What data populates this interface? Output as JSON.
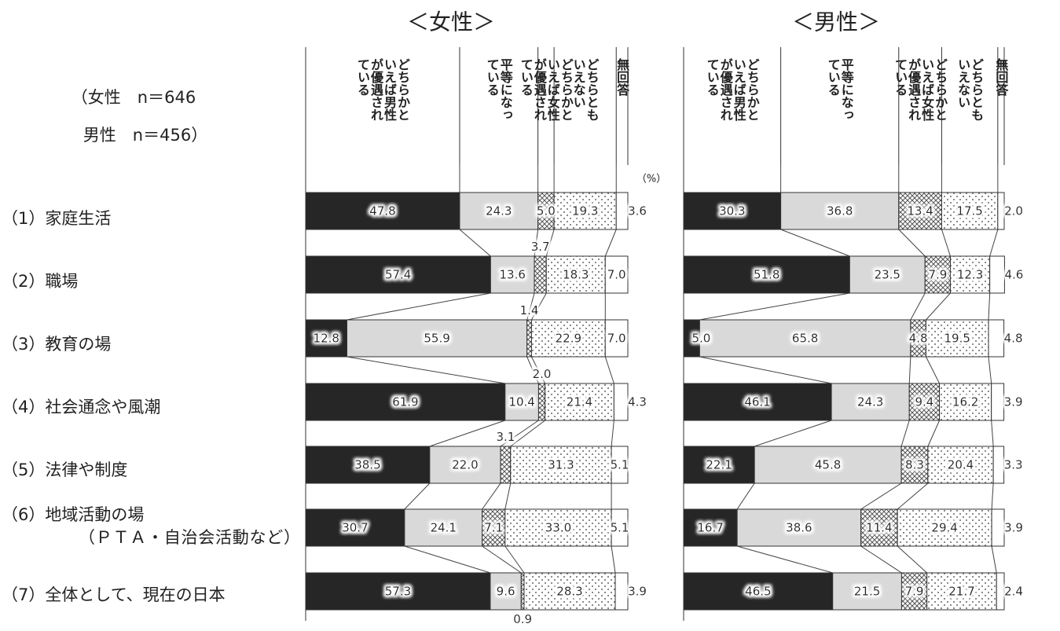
{
  "sample_note": [
    "（女性　n＝646",
    "男性　n＝456）"
  ],
  "chart_data": [
    {
      "type": "bar",
      "orientation": "horizontal",
      "stacked": true,
      "title": "＜女性＞",
      "unit": "（%）",
      "xlim": [
        0,
        100
      ],
      "categories": [
        "（1）家庭生活",
        "（2）職場",
        "（3）教育の場",
        "（4）社会通念や風潮",
        "（5）法律や制度",
        "（6）地域活動の場\n　（ＰＴＡ・自治会活動など）",
        "（7）全体として、現在の日本"
      ],
      "series": [
        {
          "name": "どちらかといえば男性が優遇されている",
          "color": "#262626",
          "pattern": "solid",
          "values": [
            47.8,
            57.4,
            12.8,
            61.9,
            38.5,
            30.7,
            57.3
          ]
        },
        {
          "name": "平等になっている",
          "color": "#d9d9d9",
          "pattern": "solid",
          "values": [
            24.3,
            13.6,
            55.9,
            10.4,
            22.0,
            24.1,
            9.6
          ]
        },
        {
          "name": "どちらかといえば女性が優遇されている",
          "color": "#ffffff",
          "pattern": "crosshatch",
          "values": [
            5.0,
            3.7,
            1.4,
            2.0,
            3.1,
            7.1,
            0.9
          ]
        },
        {
          "name": "どちらともいえない",
          "color": "#ffffff",
          "pattern": "dots",
          "values": [
            19.3,
            18.3,
            22.9,
            21.4,
            31.3,
            33.0,
            28.3
          ]
        },
        {
          "name": "無回答",
          "color": "#ffffff",
          "pattern": "blank",
          "values": [
            3.6,
            7.0,
            7.0,
            4.3,
            5.1,
            5.1,
            3.9
          ]
        }
      ]
    },
    {
      "type": "bar",
      "orientation": "horizontal",
      "stacked": true,
      "title": "＜男性＞",
      "unit": "",
      "xlim": [
        0,
        100
      ],
      "categories": [
        "（1）家庭生活",
        "（2）職場",
        "（3）教育の場",
        "（4）社会通念や風潮",
        "（5）法律や制度",
        "（6）地域活動の場\n　（ＰＴＡ・自治会活動など）",
        "（7）全体として、現在の日本"
      ],
      "series": [
        {
          "name": "どちらかといえば男性が優遇されている",
          "color": "#262626",
          "pattern": "solid",
          "values": [
            30.3,
            51.8,
            5.0,
            46.1,
            22.1,
            16.7,
            46.5
          ]
        },
        {
          "name": "平等になっている",
          "color": "#d9d9d9",
          "pattern": "solid",
          "values": [
            36.8,
            23.5,
            65.8,
            24.3,
            45.8,
            38.6,
            21.5
          ]
        },
        {
          "name": "どちらかといえば女性が優遇されている",
          "color": "#ffffff",
          "pattern": "crosshatch",
          "values": [
            13.4,
            7.9,
            4.8,
            9.4,
            8.3,
            11.4,
            7.9
          ]
        },
        {
          "name": "どちらともいえない",
          "color": "#ffffff",
          "pattern": "dots",
          "values": [
            17.5,
            12.3,
            19.5,
            16.2,
            20.4,
            29.4,
            21.7
          ]
        },
        {
          "name": "無回答",
          "color": "#ffffff",
          "pattern": "blank",
          "values": [
            2.0,
            4.6,
            4.8,
            3.9,
            3.3,
            3.9,
            2.4
          ]
        }
      ]
    }
  ]
}
